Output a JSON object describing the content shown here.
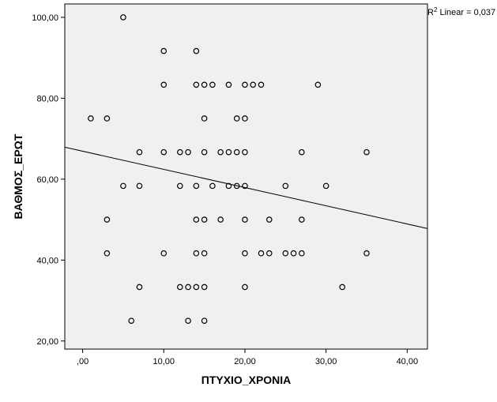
{
  "chart_data": {
    "type": "scatter",
    "xlabel": "ΠΤΥΧΙΟ_ΧΡΟΝΙΑ",
    "ylabel": "ΒΑΘΜΟΣ_ΕΡΩΤ",
    "xlim": [
      -2.2,
      42.5
    ],
    "ylim": [
      18,
      103.3
    ],
    "x_ticks": [
      0,
      10,
      20,
      30,
      40
    ],
    "x_tick_labels": [
      ",00",
      "10,00",
      "20,00",
      "30,00",
      "40,00"
    ],
    "y_ticks": [
      20,
      40,
      60,
      80,
      100
    ],
    "y_tick_labels": [
      "20,00",
      "40,00",
      "60,00",
      "80,00",
      "100,00"
    ],
    "grid": false,
    "legend": "none",
    "annotation": {
      "prefix": "R",
      "superscript": "2",
      "suffix": " Linear = 0,037"
    },
    "fit_line": {
      "x": [
        -2.2,
        42.5
      ],
      "y": [
        67.9,
        47.8
      ]
    },
    "points": [
      {
        "x": 5,
        "y": 100
      },
      {
        "x": 10,
        "y": 91.67
      },
      {
        "x": 14,
        "y": 91.67
      },
      {
        "x": 10,
        "y": 83.33
      },
      {
        "x": 14,
        "y": 83.33
      },
      {
        "x": 15,
        "y": 83.33
      },
      {
        "x": 16,
        "y": 83.33
      },
      {
        "x": 18,
        "y": 83.33
      },
      {
        "x": 20,
        "y": 83.33
      },
      {
        "x": 21,
        "y": 83.33
      },
      {
        "x": 22,
        "y": 83.33
      },
      {
        "x": 29,
        "y": 83.33
      },
      {
        "x": 1,
        "y": 75
      },
      {
        "x": 3,
        "y": 75
      },
      {
        "x": 15,
        "y": 75
      },
      {
        "x": 19,
        "y": 75
      },
      {
        "x": 20,
        "y": 75
      },
      {
        "x": 7,
        "y": 66.67
      },
      {
        "x": 10,
        "y": 66.67
      },
      {
        "x": 12,
        "y": 66.67
      },
      {
        "x": 13,
        "y": 66.67
      },
      {
        "x": 15,
        "y": 66.67
      },
      {
        "x": 17,
        "y": 66.67
      },
      {
        "x": 18,
        "y": 66.67
      },
      {
        "x": 19,
        "y": 66.67
      },
      {
        "x": 20,
        "y": 66.67
      },
      {
        "x": 27,
        "y": 66.67
      },
      {
        "x": 35,
        "y": 66.67
      },
      {
        "x": 5,
        "y": 58.33
      },
      {
        "x": 7,
        "y": 58.33
      },
      {
        "x": 12,
        "y": 58.33
      },
      {
        "x": 14,
        "y": 58.33
      },
      {
        "x": 16,
        "y": 58.33
      },
      {
        "x": 18,
        "y": 58.33
      },
      {
        "x": 19,
        "y": 58.33
      },
      {
        "x": 20,
        "y": 58.33
      },
      {
        "x": 25,
        "y": 58.33
      },
      {
        "x": 30,
        "y": 58.33
      },
      {
        "x": 3,
        "y": 50
      },
      {
        "x": 14,
        "y": 50
      },
      {
        "x": 15,
        "y": 50
      },
      {
        "x": 17,
        "y": 50
      },
      {
        "x": 20,
        "y": 50
      },
      {
        "x": 23,
        "y": 50
      },
      {
        "x": 27,
        "y": 50
      },
      {
        "x": 3,
        "y": 41.67
      },
      {
        "x": 10,
        "y": 41.67
      },
      {
        "x": 14,
        "y": 41.67
      },
      {
        "x": 15,
        "y": 41.67
      },
      {
        "x": 20,
        "y": 41.67
      },
      {
        "x": 22,
        "y": 41.67
      },
      {
        "x": 23,
        "y": 41.67
      },
      {
        "x": 25,
        "y": 41.67
      },
      {
        "x": 26,
        "y": 41.67
      },
      {
        "x": 27,
        "y": 41.67
      },
      {
        "x": 35,
        "y": 41.67
      },
      {
        "x": 7,
        "y": 33.33
      },
      {
        "x": 12,
        "y": 33.33
      },
      {
        "x": 13,
        "y": 33.33
      },
      {
        "x": 14,
        "y": 33.33
      },
      {
        "x": 15,
        "y": 33.33
      },
      {
        "x": 20,
        "y": 33.33
      },
      {
        "x": 32,
        "y": 33.33
      },
      {
        "x": 6,
        "y": 25
      },
      {
        "x": 13,
        "y": 25
      },
      {
        "x": 15,
        "y": 25
      }
    ],
    "colors": {
      "plot_background": "#f0f0f0",
      "marker_stroke": "#000000",
      "fit_line": "#000000"
    }
  }
}
